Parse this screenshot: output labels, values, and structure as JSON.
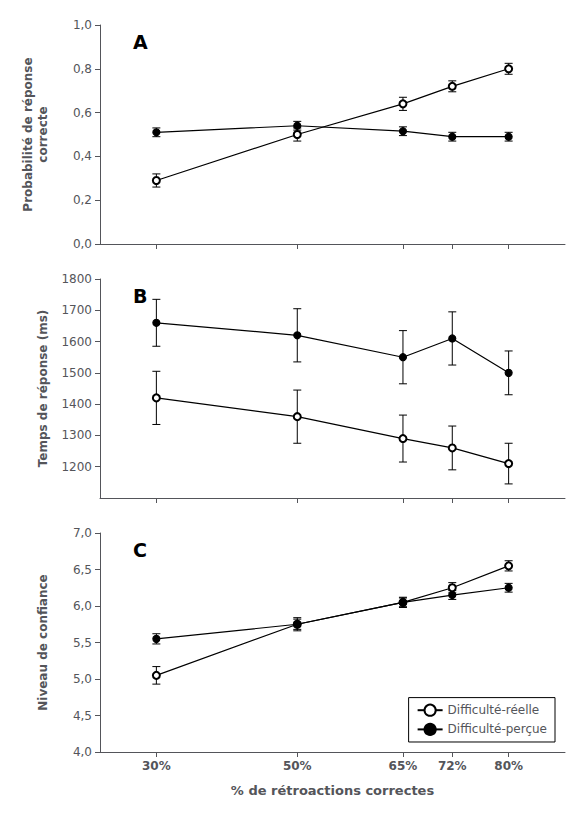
{
  "chart_data": [
    {
      "type": "line",
      "title": "A",
      "ylabel": "Probabilité de réponse\ncorrecte",
      "x": [
        30,
        50,
        65,
        72,
        80
      ],
      "xlim": [
        22,
        88
      ],
      "xticks": [
        {
          "value": 30,
          "label": "30%"
        },
        {
          "value": 50,
          "label": "50%"
        },
        {
          "value": 65,
          "label": "65%"
        },
        {
          "value": 72,
          "label": "72%"
        },
        {
          "value": 80,
          "label": "80%"
        }
      ],
      "ylim": [
        0.0,
        1.0
      ],
      "yticks": [
        {
          "value": 0.0,
          "label": "0,0"
        },
        {
          "value": 0.2,
          "label": "0,2"
        },
        {
          "value": 0.4,
          "label": "0,4"
        },
        {
          "value": 0.6,
          "label": "0,6"
        },
        {
          "value": 0.8,
          "label": "0,8"
        },
        {
          "value": 1.0,
          "label": "1,0"
        }
      ],
      "grid": false,
      "tick_labels": "y",
      "series": [
        {
          "name": "Difficulté-réelle",
          "color": "#000000",
          "marker": "emptyCircle",
          "values": [
            0.29,
            0.5,
            0.64,
            0.72,
            0.8
          ],
          "errors": [
            0.03,
            0.03,
            0.03,
            0.025,
            0.025
          ]
        },
        {
          "name": "Difficulté-perçue",
          "color": "#000000",
          "marker": "circle",
          "values": [
            0.51,
            0.54,
            0.515,
            0.49,
            0.49
          ],
          "errors": [
            0.02,
            0.02,
            0.02,
            0.02,
            0.02
          ]
        }
      ]
    },
    {
      "type": "line",
      "title": "B",
      "ylabel": "Temps de réponse (ms)",
      "x": [
        30,
        50,
        65,
        72,
        80
      ],
      "xlim": [
        22,
        88
      ],
      "xticks": [
        {
          "value": 30,
          "label": "30%"
        },
        {
          "value": 50,
          "label": "50%"
        },
        {
          "value": 65,
          "label": "65%"
        },
        {
          "value": 72,
          "label": "72%"
        },
        {
          "value": 80,
          "label": "80%"
        }
      ],
      "ylim": [
        1100,
        1800
      ],
      "yticks": [
        1200,
        1300,
        1400,
        1500,
        1600,
        1700,
        1800
      ],
      "grid": false,
      "tick_labels": "y",
      "series": [
        {
          "name": "Difficulté-réelle",
          "color": "#000000",
          "marker": "emptyCircle",
          "values": [
            1420,
            1360,
            1290,
            1260,
            1210
          ],
          "errors": [
            85,
            85,
            75,
            70,
            65
          ]
        },
        {
          "name": "Difficulté-perçue",
          "color": "#000000",
          "marker": "circle",
          "values": [
            1660,
            1620,
            1550,
            1610,
            1500
          ],
          "errors": [
            75,
            85,
            85,
            85,
            70
          ]
        }
      ]
    },
    {
      "type": "line",
      "title": "C",
      "ylabel": "Niveau de confiance",
      "xlabel": "% de rétroactions correctes",
      "x": [
        30,
        50,
        65,
        72,
        80
      ],
      "xlim": [
        22,
        88
      ],
      "xticks": [
        {
          "value": 30,
          "label": "30%"
        },
        {
          "value": 50,
          "label": "50%"
        },
        {
          "value": 65,
          "label": "65%"
        },
        {
          "value": 72,
          "label": "72%"
        },
        {
          "value": 80,
          "label": "80%"
        }
      ],
      "ylim": [
        4.0,
        7.0
      ],
      "yticks": [
        {
          "value": 4.0,
          "label": "4,0"
        },
        {
          "value": 4.5,
          "label": "4,5"
        },
        {
          "value": 5.0,
          "label": "5,0"
        },
        {
          "value": 5.5,
          "label": "5,5"
        },
        {
          "value": 6.0,
          "label": "6,0"
        },
        {
          "value": 6.5,
          "label": "6,5"
        },
        {
          "value": 7.0,
          "label": "7,0"
        }
      ],
      "grid": false,
      "legend": "lower right",
      "series": [
        {
          "name": "Difficulté-réelle",
          "color": "#000000",
          "marker": "emptyCircle",
          "values": [
            5.05,
            5.75,
            6.05,
            6.25,
            6.55
          ],
          "errors": [
            0.12,
            0.09,
            0.07,
            0.07,
            0.07
          ]
        },
        {
          "name": "Difficulté-perçue",
          "color": "#000000",
          "marker": "circle",
          "values": [
            5.55,
            5.75,
            6.05,
            6.15,
            6.25
          ],
          "errors": [
            0.07,
            0.07,
            0.06,
            0.06,
            0.06
          ]
        }
      ]
    }
  ]
}
